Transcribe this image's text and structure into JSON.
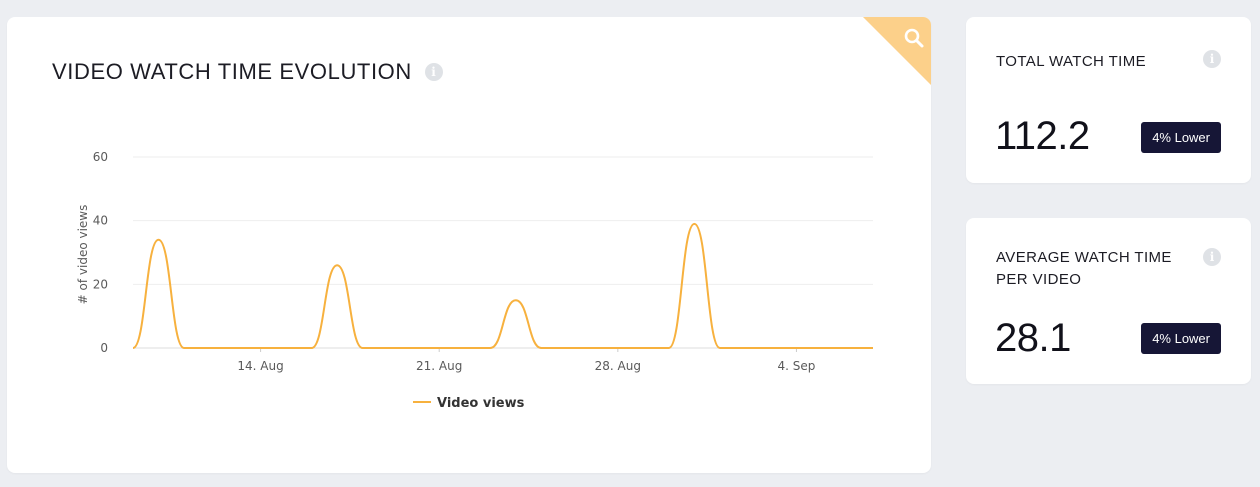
{
  "colors": {
    "series": "#f7b13e",
    "corner": "#fcd08a",
    "badge_bg": "#161636",
    "background": "#eceef2"
  },
  "main_card": {
    "title": "VIDEO WATCH TIME EVOLUTION",
    "info_icon": "info-icon",
    "corner_icon": "search-icon"
  },
  "chart_data": {
    "type": "line",
    "title": "VIDEO WATCH TIME EVOLUTION",
    "xlabel": "",
    "ylabel": "# of video views",
    "x_ticks": [
      "14. Aug",
      "21. Aug",
      "28. Aug",
      "4. Sep"
    ],
    "y_ticks": [
      0,
      20,
      40,
      60
    ],
    "ylim": [
      0,
      60
    ],
    "xlim": [
      "2023-08-09",
      "2023-09-07"
    ],
    "grid": true,
    "legend": "bottom-center",
    "series": [
      {
        "name": "Video views",
        "x": [
          "2023-08-09",
          "2023-08-10",
          "2023-08-11",
          "2023-08-12",
          "2023-08-13",
          "2023-08-14",
          "2023-08-15",
          "2023-08-16",
          "2023-08-17",
          "2023-08-18",
          "2023-08-19",
          "2023-08-20",
          "2023-08-21",
          "2023-08-22",
          "2023-08-23",
          "2023-08-24",
          "2023-08-25",
          "2023-08-26",
          "2023-08-27",
          "2023-08-28",
          "2023-08-29",
          "2023-08-30",
          "2023-08-31",
          "2023-09-01",
          "2023-09-02",
          "2023-09-03",
          "2023-09-04",
          "2023-09-05",
          "2023-09-06",
          "2023-09-07"
        ],
        "values": [
          0,
          34,
          0,
          0,
          0,
          0,
          0,
          0,
          26,
          0,
          0,
          0,
          0,
          0,
          0,
          15,
          0,
          0,
          0,
          0,
          0,
          0,
          39,
          0,
          0,
          0,
          0,
          0,
          0,
          0
        ]
      }
    ]
  },
  "stats": [
    {
      "title": "TOTAL WATCH TIME",
      "value": "112.2",
      "badge": "4% Lower"
    },
    {
      "title": "AVERAGE WATCH TIME PER VIDEO",
      "value": "28.1",
      "badge": "4% Lower"
    }
  ]
}
